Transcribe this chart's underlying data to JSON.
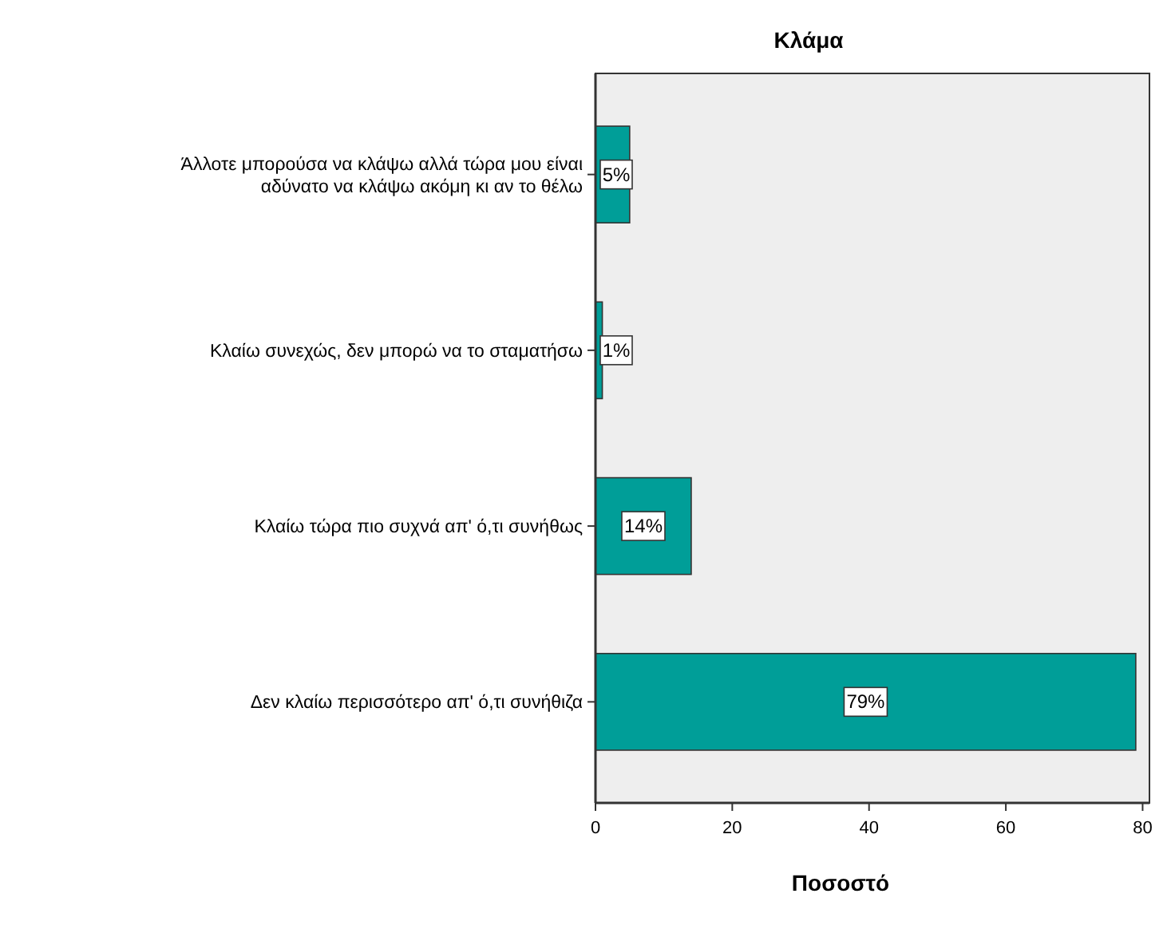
{
  "chart_data": {
    "type": "bar",
    "orientation": "horizontal",
    "title": "Κλάμα",
    "xlabel": "Ποσοστό",
    "categories": [
      "Άλλοτε μπορούσα να κλάψω αλλά τώρα μου είναι αδύνατο να κλάψω ακόμη κι αν το θέλω",
      "Κλαίω συνεχώς, δεν μπορώ να το σταματήσω",
      "Κλαίω τώρα πιο συχνά απ' ό,τι συνήθως",
      "Δεν κλαίω περισσότερο απ' ό,τι συνήθιζα"
    ],
    "values": [
      5,
      1,
      14,
      79
    ],
    "value_labels": [
      "5%",
      "1%",
      "14%",
      "79%"
    ],
    "color": "#009e98",
    "xlim": [
      0,
      81
    ],
    "xticks": [
      0,
      20,
      40,
      60,
      80
    ],
    "grid": false
  }
}
